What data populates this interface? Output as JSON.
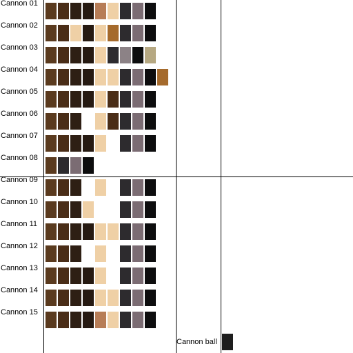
{
  "palette": {
    "dark_brown": "#5a3a1e",
    "brown": "#4a2d17",
    "very_dark_brown": "#2e1f14",
    "blackish_brown": "#261a12",
    "tan": "#b77d57",
    "light_tan": "#efd0a6",
    "ochre": "#a56a2c",
    "charcoal": "#2d2b2e",
    "taupe": "#7b6c73",
    "black": "#0d0d0e",
    "khaki": "#b6a882",
    "gray": "#8c8286",
    "cannon_ball": "#1e1e1e"
  },
  "cannons": [
    {
      "label": "Cannon 01",
      "swatches": [
        {
          "col": 0,
          "color": "dark_brown"
        },
        {
          "col": 1,
          "color": "brown"
        },
        {
          "col": 2,
          "color": "very_dark_brown"
        },
        {
          "col": 3,
          "color": "blackish_brown"
        },
        {
          "col": 4,
          "color": "tan"
        },
        {
          "col": 5,
          "color": "light_tan"
        },
        {
          "col": 6,
          "color": "charcoal"
        },
        {
          "col": 7,
          "color": "taupe"
        },
        {
          "col": 8,
          "color": "black"
        }
      ]
    },
    {
      "label": "Cannon 02",
      "swatches": [
        {
          "col": 0,
          "color": "dark_brown"
        },
        {
          "col": 1,
          "color": "brown"
        },
        {
          "col": 2,
          "color": "light_tan"
        },
        {
          "col": 3,
          "color": "blackish_brown"
        },
        {
          "col": 4,
          "color": "light_tan"
        },
        {
          "col": 5,
          "color": "ochre"
        },
        {
          "col": 6,
          "color": "charcoal"
        },
        {
          "col": 7,
          "color": "taupe"
        },
        {
          "col": 8,
          "color": "black"
        }
      ]
    },
    {
      "label": "Cannon 03",
      "swatches": [
        {
          "col": 0,
          "color": "dark_brown"
        },
        {
          "col": 1,
          "color": "brown"
        },
        {
          "col": 2,
          "color": "very_dark_brown"
        },
        {
          "col": 3,
          "color": "blackish_brown"
        },
        {
          "col": 4,
          "color": "light_tan"
        },
        {
          "col": 5,
          "color": "charcoal"
        },
        {
          "col": 6,
          "color": "gray"
        },
        {
          "col": 7,
          "color": "black"
        },
        {
          "col": 8,
          "color": "khaki"
        }
      ]
    },
    {
      "label": "Cannon 04",
      "swatches": [
        {
          "col": 0,
          "color": "dark_brown"
        },
        {
          "col": 1,
          "color": "brown"
        },
        {
          "col": 2,
          "color": "very_dark_brown"
        },
        {
          "col": 3,
          "color": "blackish_brown"
        },
        {
          "col": 4,
          "color": "light_tan"
        },
        {
          "col": 5,
          "color": "light_tan"
        },
        {
          "col": 6,
          "color": "charcoal"
        },
        {
          "col": 7,
          "color": "taupe"
        },
        {
          "col": 8,
          "color": "black"
        },
        {
          "col": 9,
          "color": "ochre"
        }
      ]
    },
    {
      "label": "Cannon 05",
      "swatches": [
        {
          "col": 0,
          "color": "dark_brown"
        },
        {
          "col": 1,
          "color": "brown"
        },
        {
          "col": 2,
          "color": "very_dark_brown"
        },
        {
          "col": 3,
          "color": "blackish_brown"
        },
        {
          "col": 4,
          "color": "light_tan"
        },
        {
          "col": 5,
          "color": "brown"
        },
        {
          "col": 6,
          "color": "charcoal"
        },
        {
          "col": 7,
          "color": "taupe"
        },
        {
          "col": 8,
          "color": "black"
        }
      ]
    },
    {
      "label": "Cannon 06",
      "swatches": [
        {
          "col": 0,
          "color": "dark_brown"
        },
        {
          "col": 1,
          "color": "brown"
        },
        {
          "col": 2,
          "color": "very_dark_brown"
        },
        {
          "col": 4,
          "color": "light_tan"
        },
        {
          "col": 5,
          "color": "brown"
        },
        {
          "col": 6,
          "color": "charcoal"
        },
        {
          "col": 7,
          "color": "taupe"
        },
        {
          "col": 8,
          "color": "black"
        }
      ]
    },
    {
      "label": "Cannon 07",
      "swatches": [
        {
          "col": 0,
          "color": "dark_brown"
        },
        {
          "col": 1,
          "color": "brown"
        },
        {
          "col": 2,
          "color": "very_dark_brown"
        },
        {
          "col": 3,
          "color": "blackish_brown"
        },
        {
          "col": 4,
          "color": "light_tan"
        },
        {
          "col": 6,
          "color": "charcoal"
        },
        {
          "col": 7,
          "color": "taupe"
        },
        {
          "col": 8,
          "color": "black"
        }
      ]
    },
    {
      "label": "Cannon 08",
      "swatches": [
        {
          "col": 0,
          "color": "dark_brown"
        },
        {
          "col": 1,
          "color": "charcoal"
        },
        {
          "col": 2,
          "color": "taupe"
        },
        {
          "col": 3,
          "color": "black"
        }
      ]
    },
    {
      "label": "Cannon 09",
      "swatches": [
        {
          "col": 0,
          "color": "dark_brown"
        },
        {
          "col": 1,
          "color": "brown"
        },
        {
          "col": 2,
          "color": "very_dark_brown"
        },
        {
          "col": 4,
          "color": "light_tan"
        },
        {
          "col": 6,
          "color": "charcoal"
        },
        {
          "col": 7,
          "color": "taupe"
        },
        {
          "col": 8,
          "color": "black"
        }
      ]
    },
    {
      "label": "Cannon 10",
      "swatches": [
        {
          "col": 0,
          "color": "dark_brown"
        },
        {
          "col": 1,
          "color": "brown"
        },
        {
          "col": 2,
          "color": "very_dark_brown"
        },
        {
          "col": 3,
          "color": "light_tan"
        },
        {
          "col": 6,
          "color": "charcoal"
        },
        {
          "col": 7,
          "color": "taupe"
        },
        {
          "col": 8,
          "color": "black"
        }
      ]
    },
    {
      "label": "Cannon 11",
      "swatches": [
        {
          "col": 0,
          "color": "dark_brown"
        },
        {
          "col": 1,
          "color": "brown"
        },
        {
          "col": 2,
          "color": "very_dark_brown"
        },
        {
          "col": 3,
          "color": "blackish_brown"
        },
        {
          "col": 4,
          "color": "light_tan"
        },
        {
          "col": 5,
          "color": "light_tan"
        },
        {
          "col": 6,
          "color": "charcoal"
        },
        {
          "col": 7,
          "color": "taupe"
        },
        {
          "col": 8,
          "color": "black"
        }
      ]
    },
    {
      "label": "Cannon 12",
      "swatches": [
        {
          "col": 0,
          "color": "dark_brown"
        },
        {
          "col": 1,
          "color": "brown"
        },
        {
          "col": 2,
          "color": "very_dark_brown"
        },
        {
          "col": 4,
          "color": "light_tan"
        },
        {
          "col": 6,
          "color": "charcoal"
        },
        {
          "col": 7,
          "color": "taupe"
        },
        {
          "col": 8,
          "color": "black"
        }
      ]
    },
    {
      "label": "Cannon 13",
      "swatches": [
        {
          "col": 0,
          "color": "dark_brown"
        },
        {
          "col": 1,
          "color": "brown"
        },
        {
          "col": 2,
          "color": "very_dark_brown"
        },
        {
          "col": 3,
          "color": "blackish_brown"
        },
        {
          "col": 4,
          "color": "light_tan"
        },
        {
          "col": 6,
          "color": "charcoal"
        },
        {
          "col": 7,
          "color": "taupe"
        },
        {
          "col": 8,
          "color": "black"
        }
      ]
    },
    {
      "label": "Cannon 14",
      "swatches": [
        {
          "col": 0,
          "color": "dark_brown"
        },
        {
          "col": 1,
          "color": "brown"
        },
        {
          "col": 2,
          "color": "very_dark_brown"
        },
        {
          "col": 3,
          "color": "blackish_brown"
        },
        {
          "col": 4,
          "color": "light_tan"
        },
        {
          "col": 5,
          "color": "light_tan"
        },
        {
          "col": 6,
          "color": "charcoal"
        },
        {
          "col": 7,
          "color": "taupe"
        },
        {
          "col": 8,
          "color": "black"
        }
      ]
    },
    {
      "label": "Cannon 15",
      "swatches": [
        {
          "col": 0,
          "color": "dark_brown"
        },
        {
          "col": 1,
          "color": "brown"
        },
        {
          "col": 2,
          "color": "very_dark_brown"
        },
        {
          "col": 3,
          "color": "blackish_brown"
        },
        {
          "col": 4,
          "color": "tan"
        },
        {
          "col": 5,
          "color": "light_tan"
        },
        {
          "col": 6,
          "color": "charcoal"
        },
        {
          "col": 7,
          "color": "taupe"
        },
        {
          "col": 8,
          "color": "black"
        }
      ]
    }
  ],
  "cannon_ball": {
    "label": "Cannon ball",
    "color": "cannon_ball"
  }
}
